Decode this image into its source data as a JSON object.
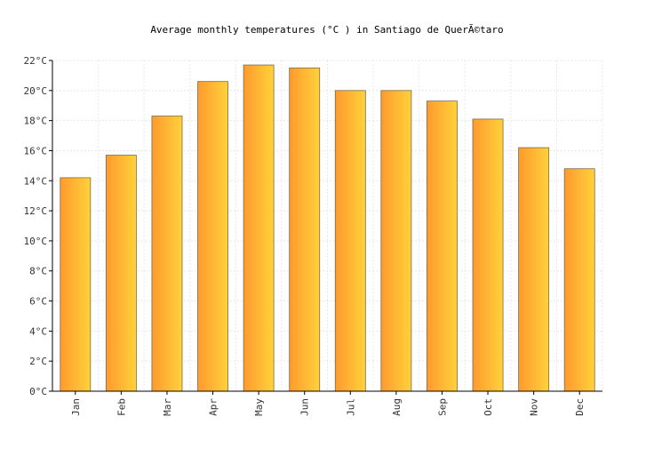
{
  "chart_data": {
    "type": "bar",
    "title": "Average monthly temperatures (°C ) in Santiago de QuerÃ©taro",
    "xlabel": "",
    "ylabel": "",
    "categories": [
      "Jan",
      "Feb",
      "Mar",
      "Apr",
      "May",
      "Jun",
      "Jul",
      "Aug",
      "Sep",
      "Oct",
      "Nov",
      "Dec"
    ],
    "series": [
      {
        "values": [
          14.2,
          15.7,
          18.3,
          20.6,
          21.7,
          21.5,
          20.0,
          20.0,
          19.3,
          18.1,
          16.2,
          14.8
        ]
      }
    ],
    "ylim": [
      0,
      22
    ],
    "yticks": [
      "0°C",
      "2°C",
      "4°C",
      "6°C",
      "8°C",
      "10°C",
      "12°C",
      "14°C",
      "16°C",
      "18°C",
      "20°C",
      "22°C"
    ],
    "grid": true,
    "legend": "none",
    "colors": {
      "bar_start": "#ff9a2e",
      "bar_end": "#ffd23a",
      "bar_stroke": "#7a6a4a",
      "grid": "#e8e8e8",
      "axis": "#000000"
    }
  }
}
